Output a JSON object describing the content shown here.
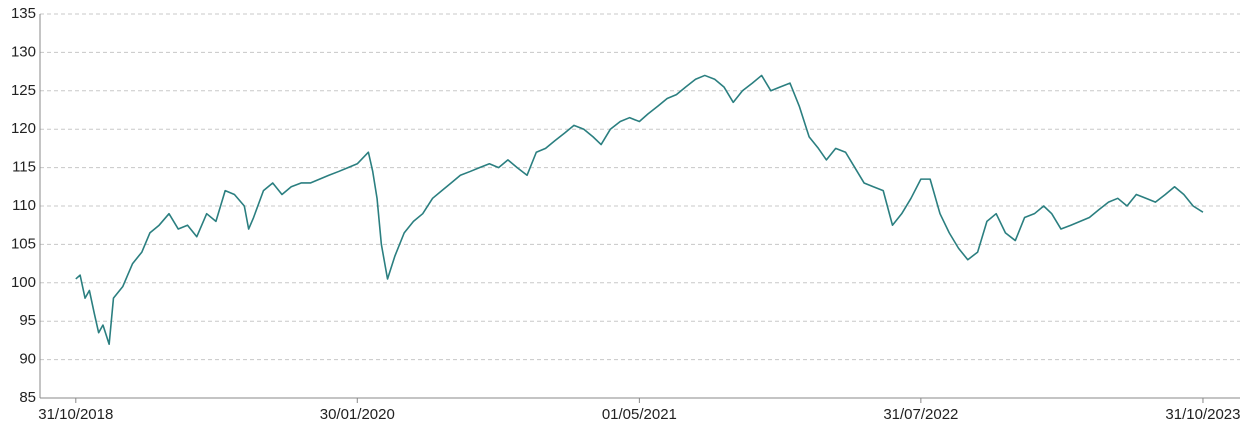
{
  "chart_data": {
    "type": "line",
    "color": "#2b7f80",
    "x": [
      "31/10/2018",
      "07/11/2018",
      "15/11/2018",
      "22/11/2018",
      "30/11/2018",
      "07/12/2018",
      "14/12/2018",
      "24/12/2018",
      "31/12/2018",
      "15/01/2019",
      "31/01/2019",
      "15/02/2019",
      "28/02/2019",
      "15/03/2019",
      "31/03/2019",
      "15/04/2019",
      "30/04/2019",
      "15/05/2019",
      "31/05/2019",
      "15/06/2019",
      "30/06/2019",
      "15/07/2019",
      "31/07/2019",
      "07/08/2019",
      "15/08/2019",
      "31/08/2019",
      "15/09/2019",
      "30/09/2019",
      "15/10/2019",
      "31/10/2019",
      "15/11/2019",
      "30/11/2019",
      "15/12/2019",
      "31/12/2019",
      "15/01/2020",
      "30/01/2020",
      "17/02/2020",
      "24/02/2020",
      "02/03/2020",
      "09/03/2020",
      "19/03/2020",
      "31/03/2020",
      "15/04/2020",
      "30/04/2020",
      "15/05/2020",
      "31/05/2020",
      "15/06/2020",
      "30/06/2020",
      "15/07/2020",
      "31/07/2020",
      "15/08/2020",
      "31/08/2020",
      "15/09/2020",
      "30/09/2020",
      "15/10/2020",
      "31/10/2020",
      "15/11/2020",
      "30/11/2020",
      "15/12/2020",
      "31/12/2020",
      "15/01/2021",
      "31/01/2021",
      "15/02/2021",
      "28/02/2021",
      "15/03/2021",
      "31/03/2021",
      "15/04/2021",
      "01/05/2021",
      "15/05/2021",
      "31/05/2021",
      "15/06/2021",
      "30/06/2021",
      "15/07/2021",
      "31/07/2021",
      "15/08/2021",
      "31/08/2021",
      "15/09/2021",
      "30/09/2021",
      "15/10/2021",
      "31/10/2021",
      "15/11/2021",
      "30/11/2021",
      "15/12/2021",
      "31/12/2021",
      "15/01/2022",
      "31/01/2022",
      "15/02/2022",
      "28/02/2022",
      "15/03/2022",
      "31/03/2022",
      "15/04/2022",
      "30/04/2022",
      "15/05/2022",
      "31/05/2022",
      "15/06/2022",
      "30/06/2022",
      "15/07/2022",
      "31/07/2022",
      "15/08/2022",
      "31/08/2022",
      "15/09/2022",
      "30/09/2022",
      "15/10/2022",
      "31/10/2022",
      "15/11/2022",
      "30/11/2022",
      "15/12/2022",
      "31/12/2022",
      "15/01/2023",
      "31/01/2023",
      "15/02/2023",
      "28/02/2023",
      "15/03/2023",
      "31/03/2023",
      "15/04/2023",
      "30/04/2023",
      "15/05/2023",
      "31/05/2023",
      "15/06/2023",
      "30/06/2023",
      "15/07/2023",
      "31/07/2023",
      "15/08/2023",
      "31/08/2023",
      "15/09/2023",
      "30/09/2023",
      "15/10/2023",
      "31/10/2023"
    ],
    "values": [
      100.5,
      101,
      98,
      99,
      96,
      93.5,
      94.5,
      92,
      98,
      99.5,
      102.5,
      104,
      106.5,
      107.5,
      109,
      107,
      107.5,
      106,
      109,
      108,
      112,
      111.5,
      110,
      107,
      108.5,
      112,
      113,
      111.5,
      112.5,
      113,
      113,
      113.5,
      114,
      114.5,
      115,
      115.5,
      117,
      114.5,
      111,
      105,
      100.5,
      103.5,
      106.5,
      108,
      109,
      111,
      112,
      113,
      114,
      114.5,
      115,
      115.5,
      115,
      116,
      115,
      114,
      117,
      117.5,
      118.5,
      119.5,
      120.5,
      120,
      119,
      118,
      120,
      121,
      121.5,
      121,
      122,
      123,
      124,
      124.5,
      125.5,
      126.5,
      127,
      126.5,
      125.5,
      123.5,
      125,
      126,
      127,
      125,
      125.5,
      126,
      123,
      119,
      117.5,
      116,
      117.5,
      117,
      115,
      113,
      112.5,
      112,
      107.5,
      109,
      111,
      113.5,
      113.5,
      109,
      106.5,
      104.5,
      103,
      104,
      108,
      109,
      106.5,
      105.5,
      108.5,
      109,
      110,
      109,
      107,
      107.5,
      108,
      108.5,
      109.5,
      110.5,
      111,
      110,
      111.5,
      111,
      110.5,
      111.5,
      112.5,
      111.5,
      110,
      109.2
    ],
    "xlim": [
      "03/09/2018",
      "30/12/2023"
    ],
    "xticks": [
      "31/10/2018",
      "30/01/2020",
      "01/05/2021",
      "31/07/2022",
      "31/10/2023"
    ],
    "ylim": [
      85,
      135
    ],
    "yticks": [
      85,
      90,
      95,
      100,
      105,
      110,
      115,
      120,
      125,
      130,
      135
    ],
    "grid": true
  }
}
